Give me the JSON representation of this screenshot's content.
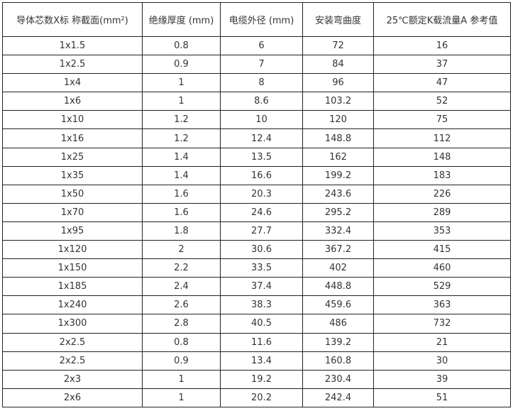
{
  "table": {
    "headers": [
      "导体芯数X标 称截面(mm²)",
      "绝缘厚度 (mm)",
      "电缆外径 (mm)",
      "安装弯曲度",
      "25℃额定K载流量A 参考值"
    ],
    "rows": [
      [
        "1x1.5",
        "0.8",
        "6",
        "72",
        "16"
      ],
      [
        "1x2.5",
        "0.9",
        "7",
        "84",
        "37"
      ],
      [
        "1x4",
        "1",
        "8",
        "96",
        "47"
      ],
      [
        "1x6",
        "1",
        "8.6",
        "103.2",
        "52"
      ],
      [
        "1x10",
        "1.2",
        "10",
        "120",
        "75"
      ],
      [
        "1x16",
        "1.2",
        "12.4",
        "148.8",
        "112"
      ],
      [
        "1x25",
        "1.4",
        "13.5",
        "162",
        "148"
      ],
      [
        "1x35",
        "1.4",
        "16.6",
        "199.2",
        "183"
      ],
      [
        "1x50",
        "1.6",
        "20.3",
        "243.6",
        "226"
      ],
      [
        "1x70",
        "1.6",
        "24.6",
        "295.2",
        "289"
      ],
      [
        "1x95",
        "1.8",
        "27.7",
        "332.4",
        "353"
      ],
      [
        "1x120",
        "2",
        "30.6",
        "367.2",
        "415"
      ],
      [
        "1x150",
        "2.2",
        "33.5",
        "402",
        "460"
      ],
      [
        "1x185",
        "2.4",
        "37.4",
        "448.8",
        "529"
      ],
      [
        "1x240",
        "2.6",
        "38.3",
        "459.6",
        "363"
      ],
      [
        "1x300",
        "2.8",
        "40.5",
        "486",
        "732"
      ],
      [
        "2x2.5",
        "0.8",
        "11.6",
        "139.2",
        "21"
      ],
      [
        "2x2.5",
        "0.9",
        "13.4",
        "160.8",
        "30"
      ],
      [
        "2x3",
        "1",
        "19.2",
        "230.4",
        "39"
      ],
      [
        "2x6",
        "1",
        "20.2",
        "242.4",
        "51"
      ]
    ]
  }
}
